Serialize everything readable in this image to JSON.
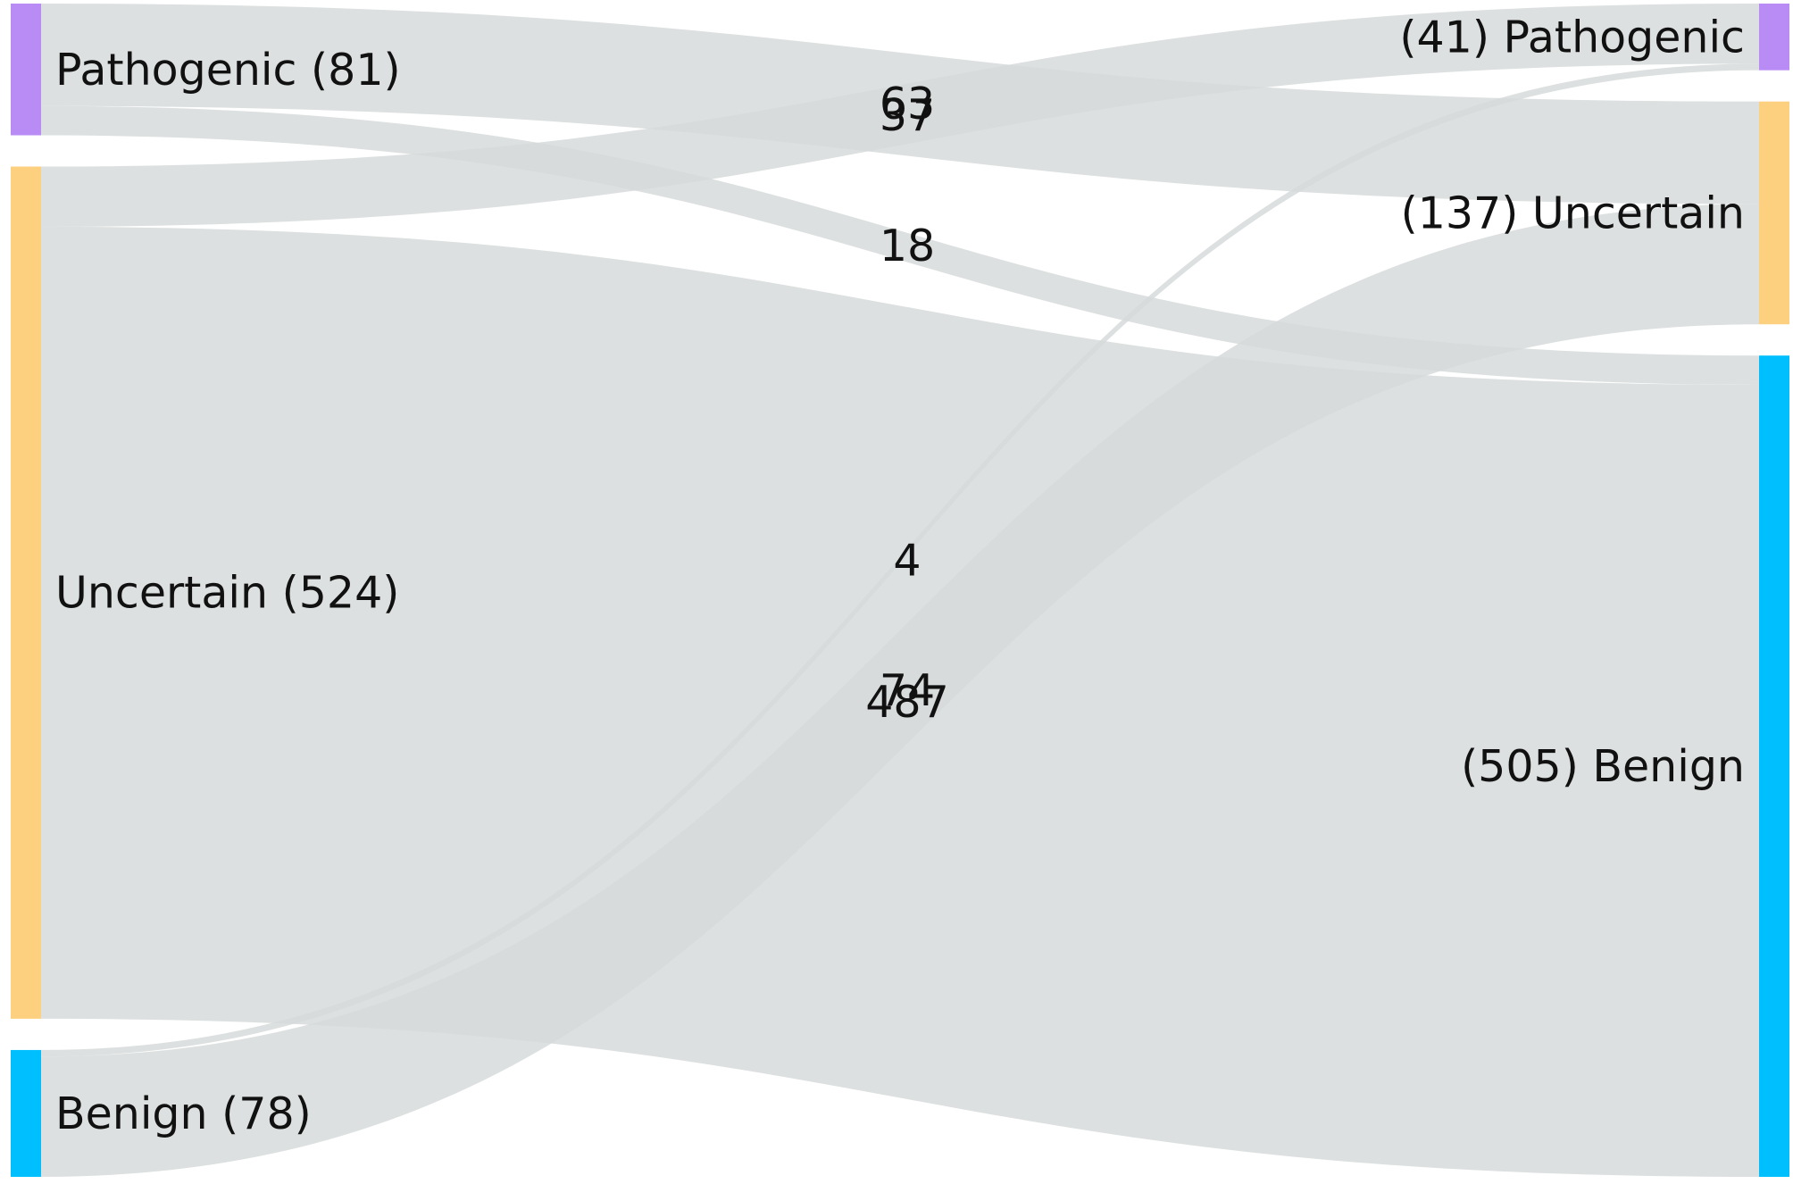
{
  "sankey": {
    "link_color": "#d5d9d9",
    "source_nodes": [
      {
        "id": "src-pathogenic",
        "label": "Pathogenic (81)",
        "name": "Pathogenic",
        "value": 81,
        "color": "#b98cf5"
      },
      {
        "id": "src-uncertain",
        "label": "Uncertain (524)",
        "name": "Uncertain",
        "value": 524,
        "color": "#fdd080"
      },
      {
        "id": "src-benign",
        "label": "Benign (78)",
        "name": "Benign",
        "value": 78,
        "color": "#00bfff"
      }
    ],
    "target_nodes": [
      {
        "id": "tgt-pathogenic",
        "label": "(41) Pathogenic",
        "name": "Pathogenic",
        "value": 41,
        "color": "#b98cf5"
      },
      {
        "id": "tgt-uncertain",
        "label": "(137) Uncertain",
        "name": "Uncertain",
        "value": 137,
        "color": "#fdd080"
      },
      {
        "id": "tgt-benign",
        "label": "(505) Benign",
        "name": "Benign",
        "value": 505,
        "color": "#00bfff"
      }
    ],
    "links": [
      {
        "source": "Pathogenic",
        "target": "Uncertain",
        "value": 63,
        "label": "63"
      },
      {
        "source": "Pathogenic",
        "target": "Benign",
        "value": 18,
        "label": "18"
      },
      {
        "source": "Uncertain",
        "target": "Pathogenic",
        "value": 37,
        "label": "37"
      },
      {
        "source": "Uncertain",
        "target": "Benign",
        "value": 487,
        "label": "487"
      },
      {
        "source": "Benign",
        "target": "Pathogenic",
        "value": 4,
        "label": "4"
      },
      {
        "source": "Benign",
        "target": "Uncertain",
        "value": 74,
        "label": "74"
      }
    ]
  }
}
